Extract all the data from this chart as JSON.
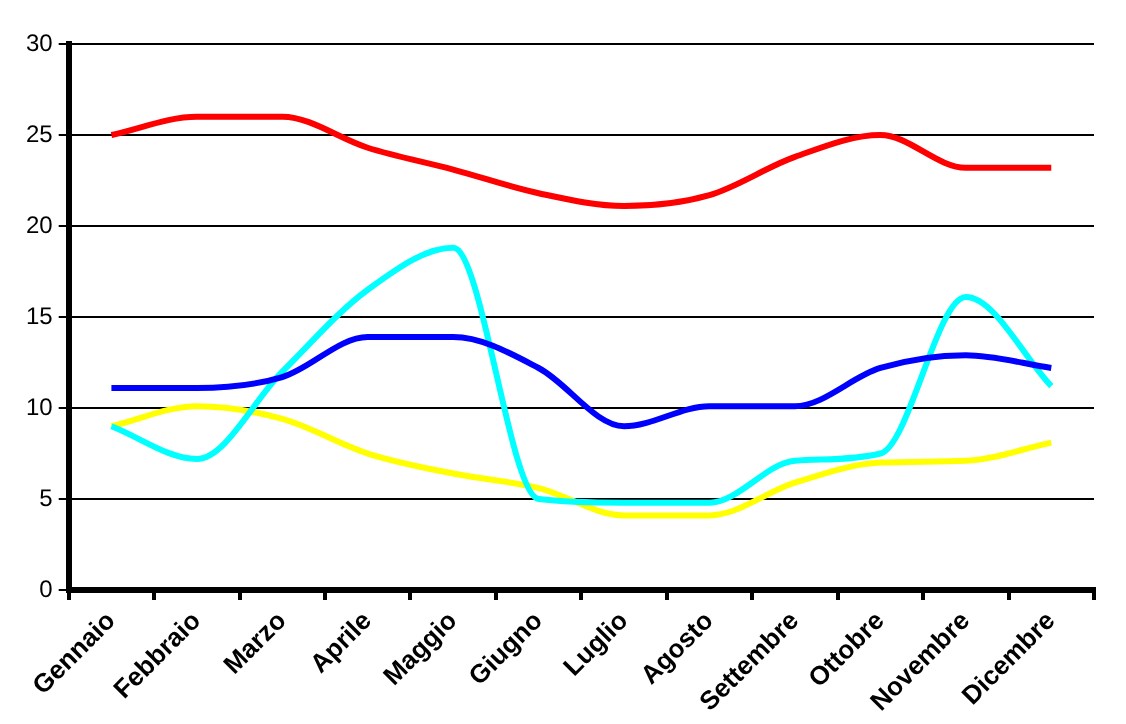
{
  "chart_data": {
    "type": "line",
    "categories": [
      "Gennaio",
      "Febbraio",
      "Marzo",
      "Aprile",
      "Maggio",
      "Giugno",
      "Luglio",
      "Agosto",
      "Settembre",
      "Ottobre",
      "Novembre",
      "Dicembre"
    ],
    "series": [
      {
        "color": "#ff0000",
        "values": [
          25,
          26,
          26,
          24.3,
          23.1,
          21.8,
          21.1,
          21.7,
          23.8,
          25,
          23.2,
          23.2
        ]
      },
      {
        "color": "#0000ff",
        "values": [
          11.1,
          11.1,
          11.7,
          13.9,
          13.9,
          12.2,
          9,
          10.1,
          10.1,
          12.2,
          12.9,
          12.2
        ]
      },
      {
        "color": "#00ffff",
        "values": [
          9,
          7.2,
          12,
          16.5,
          18.8,
          5,
          4.8,
          4.8,
          7.1,
          7.5,
          16.1,
          11.2
        ]
      },
      {
        "color": "#ffff00",
        "values": [
          9,
          10.1,
          9.4,
          7.5,
          6.4,
          5.6,
          4.1,
          4.1,
          5.9,
          7,
          7.1,
          8.1
        ]
      }
    ],
    "ylim": [
      0,
      30
    ],
    "yticks": [
      0,
      5,
      10,
      15,
      20,
      25,
      30
    ],
    "grid": "y",
    "legend": false,
    "marker": "none",
    "line_style": "solid"
  }
}
